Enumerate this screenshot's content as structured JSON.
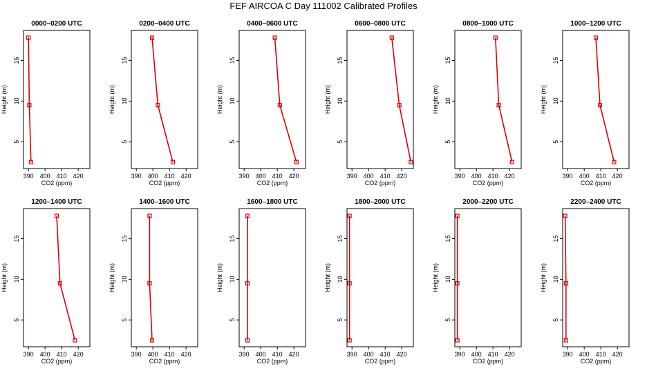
{
  "title": "FEF AIRCOA C  Day 111002  Calibrated Profiles",
  "colors": {
    "profile": "#dd0000",
    "axis": "#000000",
    "background": "#ffffff"
  },
  "chart_data": [
    {
      "type": "line",
      "title": "0000–0200 UTC",
      "xlabel": "CO2 (ppm)",
      "ylabel": "Height (m)",
      "xlim": [
        387,
        427
      ],
      "ylim": [
        1.7,
        18.7
      ],
      "xticks": [
        390,
        400,
        410,
        420
      ],
      "yticks": [
        5,
        10,
        15
      ],
      "series": [
        {
          "name": "profile",
          "x": [
            391.5,
            390.5,
            390.0
          ],
          "y": [
            2.5,
            9.5,
            17.8
          ]
        }
      ]
    },
    {
      "type": "line",
      "title": "0200–0400 UTC",
      "xlabel": "CO2 (ppm)",
      "ylabel": "Height (m)",
      "xlim": [
        387,
        427
      ],
      "ylim": [
        1.7,
        18.7
      ],
      "xticks": [
        390,
        400,
        410,
        420
      ],
      "yticks": [
        5,
        10,
        15
      ],
      "series": [
        {
          "name": "profile",
          "x": [
            412.0,
            403.0,
            399.5
          ],
          "y": [
            2.5,
            9.5,
            17.8
          ]
        }
      ]
    },
    {
      "type": "line",
      "title": "0400–0600 UTC",
      "xlabel": "CO2 (ppm)",
      "ylabel": "Height (m)",
      "xlim": [
        387,
        427
      ],
      "ylim": [
        1.7,
        18.7
      ],
      "xticks": [
        390,
        400,
        410,
        420
      ],
      "yticks": [
        5,
        10,
        15
      ],
      "series": [
        {
          "name": "profile",
          "x": [
            421.5,
            411.5,
            408.5
          ],
          "y": [
            2.5,
            9.5,
            17.8
          ]
        }
      ]
    },
    {
      "type": "line",
      "title": "0600–0800 UTC",
      "xlabel": "CO2 (ppm)",
      "ylabel": "Height (m)",
      "xlim": [
        387,
        427
      ],
      "ylim": [
        1.7,
        18.7
      ],
      "xticks": [
        390,
        400,
        410,
        420
      ],
      "yticks": [
        5,
        10,
        15
      ],
      "series": [
        {
          "name": "profile",
          "x": [
            425.5,
            418.5,
            414.0
          ],
          "y": [
            2.5,
            9.5,
            17.8
          ]
        }
      ]
    },
    {
      "type": "line",
      "title": "0800–1000 UTC",
      "xlabel": "CO2 (ppm)",
      "ylabel": "Height (m)",
      "xlim": [
        387,
        427
      ],
      "ylim": [
        1.7,
        18.7
      ],
      "xticks": [
        390,
        400,
        410,
        420
      ],
      "yticks": [
        5,
        10,
        15
      ],
      "series": [
        {
          "name": "profile",
          "x": [
            421.5,
            413.5,
            411.5
          ],
          "y": [
            2.5,
            9.5,
            17.8
          ]
        }
      ]
    },
    {
      "type": "line",
      "title": "1000–1200 UTC",
      "xlabel": "CO2 (ppm)",
      "ylabel": "Height (m)",
      "xlim": [
        387,
        427
      ],
      "ylim": [
        1.7,
        18.7
      ],
      "xticks": [
        390,
        400,
        410,
        420
      ],
      "yticks": [
        5,
        10,
        15
      ],
      "series": [
        {
          "name": "profile",
          "x": [
            418.0,
            409.5,
            407.0
          ],
          "y": [
            2.5,
            9.5,
            17.8
          ]
        }
      ]
    },
    {
      "type": "line",
      "title": "1200–1400 UTC",
      "xlabel": "CO2 (ppm)",
      "ylabel": "Height (m)",
      "xlim": [
        387,
        427
      ],
      "ylim": [
        1.7,
        18.7
      ],
      "xticks": [
        390,
        400,
        410,
        420
      ],
      "yticks": [
        5,
        10,
        15
      ],
      "series": [
        {
          "name": "profile",
          "x": [
            418.0,
            409.0,
            407.0
          ],
          "y": [
            2.5,
            9.5,
            17.8
          ]
        }
      ]
    },
    {
      "type": "line",
      "title": "1400–1600 UTC",
      "xlabel": "CO2 (ppm)",
      "ylabel": "Height (m)",
      "xlim": [
        387,
        427
      ],
      "ylim": [
        1.7,
        18.7
      ],
      "xticks": [
        390,
        400,
        410,
        420
      ],
      "yticks": [
        5,
        10,
        15
      ],
      "series": [
        {
          "name": "profile",
          "x": [
            399.5,
            398.0,
            398.0
          ],
          "y": [
            2.5,
            9.5,
            17.8
          ]
        }
      ]
    },
    {
      "type": "line",
      "title": "1600–1800 UTC",
      "xlabel": "CO2 (ppm)",
      "ylabel": "Height (m)",
      "xlim": [
        387,
        427
      ],
      "ylim": [
        1.7,
        18.7
      ],
      "xticks": [
        390,
        400,
        410,
        420
      ],
      "yticks": [
        5,
        10,
        15
      ],
      "series": [
        {
          "name": "profile",
          "x": [
            392.0,
            392.0,
            392.0
          ],
          "y": [
            2.5,
            9.5,
            17.8
          ]
        }
      ]
    },
    {
      "type": "line",
      "title": "1800–2000 UTC",
      "xlabel": "CO2 (ppm)",
      "ylabel": "Height (m)",
      "xlim": [
        387,
        427
      ],
      "ylim": [
        1.7,
        18.7
      ],
      "xticks": [
        390,
        400,
        410,
        420
      ],
      "yticks": [
        5,
        10,
        15
      ],
      "series": [
        {
          "name": "profile",
          "x": [
            388.5,
            388.5,
            388.5
          ],
          "y": [
            2.5,
            9.5,
            17.8
          ]
        }
      ]
    },
    {
      "type": "line",
      "title": "2000–2200 UTC",
      "xlabel": "CO2 (ppm)",
      "ylabel": "Height (m)",
      "xlim": [
        387,
        427
      ],
      "ylim": [
        1.7,
        18.7
      ],
      "xticks": [
        390,
        400,
        410,
        420
      ],
      "yticks": [
        5,
        10,
        15
      ],
      "series": [
        {
          "name": "profile",
          "x": [
            388.5,
            388.5,
            388.5
          ],
          "y": [
            2.5,
            9.5,
            17.8
          ]
        }
      ]
    },
    {
      "type": "line",
      "title": "2200–2400 UTC",
      "xlabel": "CO2 (ppm)",
      "ylabel": "Height (m)",
      "xlim": [
        387,
        427
      ],
      "ylim": [
        1.7,
        18.7
      ],
      "xticks": [
        390,
        400,
        410,
        420
      ],
      "yticks": [
        5,
        10,
        15
      ],
      "series": [
        {
          "name": "profile",
          "x": [
            389.0,
            389.0,
            388.5
          ],
          "y": [
            2.5,
            9.5,
            17.8
          ]
        }
      ]
    }
  ]
}
